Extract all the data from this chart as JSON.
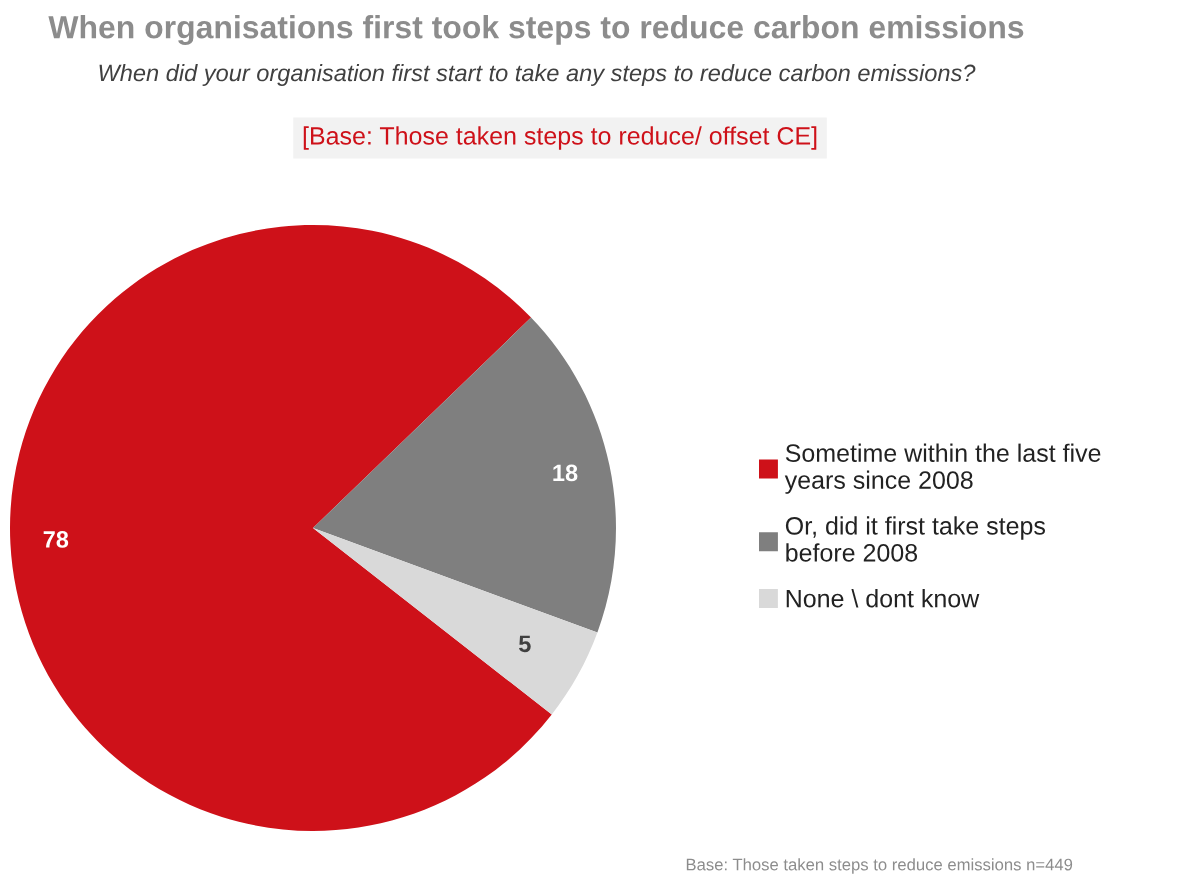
{
  "chart_data": {
    "type": "pie",
    "title": "When organisations first took steps to reduce carbon emissions",
    "subtitle": "When did your organisation first start to take any steps to reduce carbon emissions?",
    "annotations": [
      "[Base: Those taken steps to reduce/ offset CE]",
      "Base: Those taken steps to reduce emissions n=449"
    ],
    "categories": [
      "Sometime within the last five years since 2008",
      "Or, did it first take steps before 2008",
      "None \\ dont know"
    ],
    "values": [
      78,
      18,
      5
    ],
    "colors": [
      "#ce1119",
      "#7f7f7f",
      "#d9d9d9"
    ],
    "data_labels": true,
    "legend": "right"
  }
}
